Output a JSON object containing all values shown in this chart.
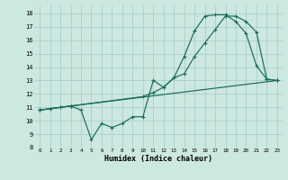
{
  "xlabel": "Humidex (Indice chaleur)",
  "bg_color": "#cce8e0",
  "grid_color": "#aacfc8",
  "line_color": "#1a6b5a",
  "xlim": [
    -0.5,
    23.5
  ],
  "ylim": [
    8,
    18.6
  ],
  "xticks": [
    0,
    1,
    2,
    3,
    4,
    5,
    6,
    7,
    8,
    9,
    10,
    11,
    12,
    13,
    14,
    15,
    16,
    17,
    18,
    19,
    20,
    21,
    22,
    23
  ],
  "yticks": [
    8,
    9,
    10,
    11,
    12,
    13,
    14,
    15,
    16,
    17,
    18
  ],
  "line1_x": [
    0,
    1,
    2,
    3,
    4,
    5,
    6,
    7,
    8,
    9,
    10,
    11,
    12,
    13,
    14,
    15,
    16,
    17,
    18,
    19,
    20,
    21,
    22,
    23
  ],
  "line1_y": [
    10.8,
    10.9,
    11.0,
    11.1,
    10.8,
    8.6,
    9.8,
    9.5,
    9.8,
    10.3,
    10.3,
    13.0,
    12.5,
    13.2,
    14.8,
    16.7,
    17.8,
    17.9,
    17.9,
    17.4,
    16.5,
    14.1,
    13.1,
    13.0
  ],
  "line2_x": [
    0,
    3,
    23
  ],
  "line2_y": [
    10.8,
    11.1,
    13.0
  ],
  "line3_x": [
    0,
    3,
    10,
    11,
    12,
    13,
    14,
    15,
    16,
    17,
    18,
    19,
    20,
    21,
    22,
    23
  ],
  "line3_y": [
    10.8,
    11.1,
    11.8,
    12.1,
    12.5,
    13.2,
    13.5,
    14.8,
    15.8,
    16.8,
    17.8,
    17.8,
    17.4,
    16.6,
    13.1,
    13.0
  ]
}
